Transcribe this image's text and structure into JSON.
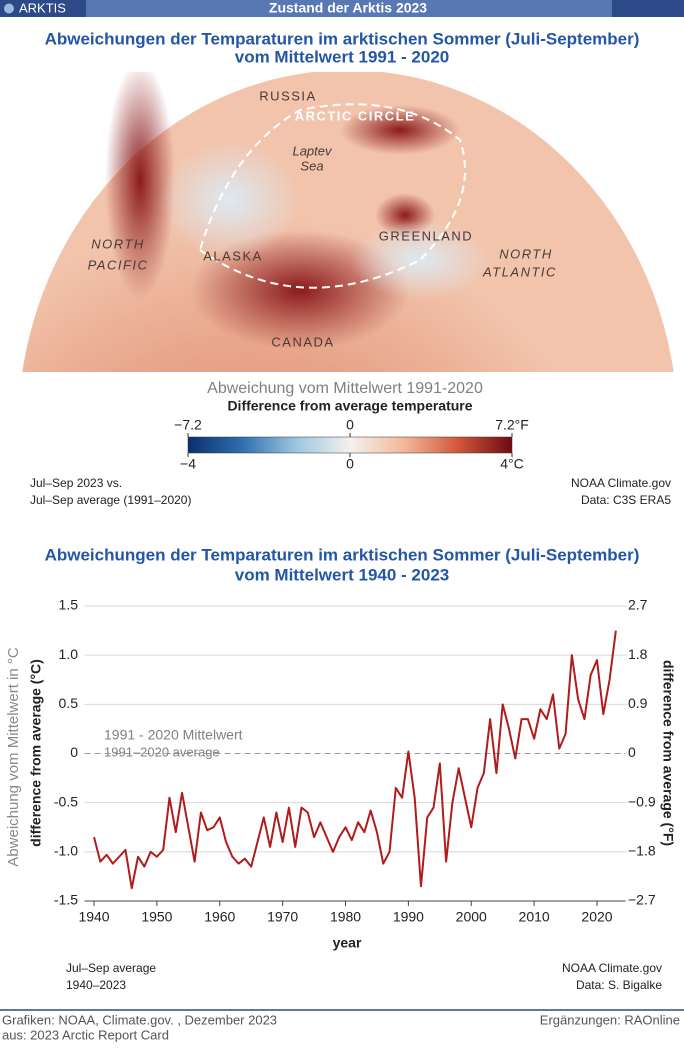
{
  "header": {
    "badge": "ARKTIS",
    "title": "Zustand der Arktis 2023"
  },
  "map": {
    "title": [
      "Abweichungen der Temparaturen im arktischen Sommer (Juli-September)",
      "vom Mittelwert 1991 - 2020"
    ],
    "labels": [
      "RUSSIA",
      "ARCTIC CIRCLE",
      "Laptev",
      "Sea",
      "GREENLAND",
      "NORTH",
      "PACIFIC",
      "ALASKA",
      "NORTH",
      "ATLANTIC",
      "CANADA"
    ],
    "legend_title": "Abweichung vom Mittelwert 1991-2020",
    "legend_subtitle": "Difference from average temperature",
    "colors": [
      "#0b2f6b",
      "#2f6fb0",
      "#9cc6e0",
      "#f4f1ee",
      "#f3b89a",
      "#d2573a",
      "#6e0a14"
    ],
    "flim": [
      -7.2,
      7.2
    ],
    "fticks": [
      {
        "value": -7.2,
        "label": "−7.2"
      },
      0,
      {
        "value": 7.2,
        "label": "7.2°F"
      }
    ],
    "clim": [
      -4,
      4
    ],
    "cticks": [
      {
        "value": -4,
        "label": "−4"
      },
      0,
      {
        "value": 4,
        "label": "4°C"
      }
    ],
    "note_left": [
      "Jul–Sep 2023 vs.",
      "Jul–Sep average (1991–2020)"
    ],
    "note_right": [
      "NOAA Climate.gov",
      "Data: C3S ERA5"
    ]
  },
  "chart_data": {
    "type": "line",
    "title": [
      "Abweichungen der Temparaturen im arktischen Sommer (Juli-September)",
      "vom Mittelwert 1940 - 2023"
    ],
    "x_label": "year",
    "y_label": "difference from average (°C)",
    "y_label_de": "Abweichung vom Mittelwert in °C",
    "y2_label": "difference from average (°F)",
    "reference_labels": [
      "1991 - 2020 Mittelwert",
      "1991–2020 average"
    ],
    "x": [
      1940,
      1941,
      1942,
      1943,
      1944,
      1945,
      1946,
      1947,
      1948,
      1949,
      1950,
      1951,
      1952,
      1953,
      1954,
      1955,
      1956,
      1957,
      1958,
      1959,
      1960,
      1961,
      1962,
      1963,
      1964,
      1965,
      1966,
      1967,
      1968,
      1969,
      1970,
      1971,
      1972,
      1973,
      1974,
      1975,
      1976,
      1977,
      1978,
      1979,
      1980,
      1981,
      1982,
      1983,
      1984,
      1985,
      1986,
      1987,
      1988,
      1989,
      1990,
      1991,
      1992,
      1993,
      1994,
      1995,
      1996,
      1997,
      1998,
      1999,
      2000,
      2001,
      2002,
      2003,
      2004,
      2005,
      2006,
      2007,
      2008,
      2009,
      2010,
      2011,
      2012,
      2013,
      2014,
      2015,
      2016,
      2017,
      2018,
      2019,
      2020,
      2021,
      2022,
      2023
    ],
    "series": [
      {
        "name": "Jul–Sep average",
        "color": "#b01c1c",
        "values": [
          -0.85,
          -1.1,
          -1.03,
          -1.12,
          -1.05,
          -0.98,
          -1.37,
          -1.05,
          -1.15,
          -1.0,
          -1.05,
          -0.98,
          -0.45,
          -0.8,
          -0.4,
          -0.75,
          -1.1,
          -0.6,
          -0.78,
          -0.75,
          -0.65,
          -0.9,
          -1.05,
          -1.12,
          -1.07,
          -1.15,
          -0.9,
          -0.65,
          -0.95,
          -0.6,
          -0.9,
          -0.55,
          -0.95,
          -0.55,
          -0.6,
          -0.85,
          -0.7,
          -0.85,
          -1.0,
          -0.85,
          -0.75,
          -0.88,
          -0.7,
          -0.8,
          -0.58,
          -0.8,
          -1.12,
          -1.0,
          -0.35,
          -0.45,
          0.02,
          -0.45,
          -1.35,
          -0.65,
          -0.55,
          -0.1,
          -1.1,
          -0.5,
          -0.15,
          -0.45,
          -0.75,
          -0.35,
          -0.2,
          0.35,
          -0.2,
          0.5,
          0.25,
          -0.05,
          0.35,
          0.35,
          0.15,
          0.45,
          0.35,
          0.6,
          0.05,
          0.2,
          1.0,
          0.55,
          0.35,
          0.8,
          0.95,
          0.4,
          0.75,
          1.25
        ]
      }
    ],
    "xlim": [
      1938.5,
      2024.5
    ],
    "xticks": [
      1940,
      1950,
      1960,
      1970,
      1980,
      1990,
      2000,
      2010,
      2020
    ],
    "ylim": [
      -1.5,
      1.5
    ],
    "yticks": [
      -1.5,
      {
        "value": -1,
        "label": "-1.0"
      },
      -0.5,
      0,
      0.5,
      {
        "value": 1,
        "label": "1.0"
      },
      1.5
    ],
    "y2lim": [
      -2.7,
      2.7
    ],
    "y2ticks": [
      {
        "value": -2.7,
        "label": "−2.7"
      },
      {
        "value": -1.8,
        "label": "−1.8"
      },
      {
        "value": -0.9,
        "label": "−0.9"
      },
      0,
      0.9,
      1.8,
      2.7
    ],
    "grid": true,
    "note_left": [
      "Jul–Sep average",
      "1940–2023"
    ],
    "note_right": [
      "NOAA Climate.gov",
      "Data: S. Bigalke"
    ]
  },
  "footer": {
    "left": [
      "Grafiken: NOAA, Climate.gov. , Dezember 2023",
      "aus: 2023 Arctic Report Card"
    ],
    "right": "Ergänzungen: RAOnline"
  }
}
